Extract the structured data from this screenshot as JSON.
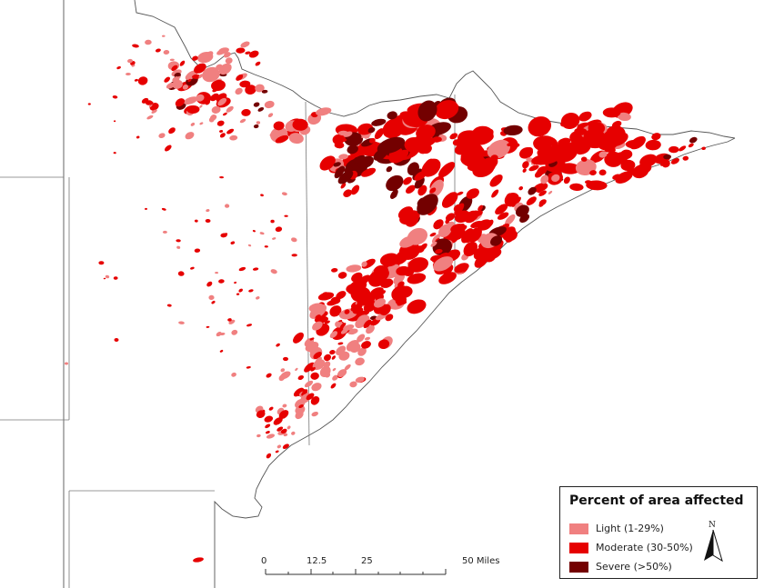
{
  "map": {
    "colors": {
      "light": "#f08080",
      "moderate": "#e60000",
      "severe": "#730000",
      "boundary": "#555555",
      "county_line": "#777777"
    }
  },
  "legend": {
    "title": "Percent of area affected",
    "items": [
      {
        "key": "light",
        "label": "Light (1-29%)",
        "color": "#f08080"
      },
      {
        "key": "moderate",
        "label": "Moderate (30-50%)",
        "color": "#e60000"
      },
      {
        "key": "severe",
        "label": "Severe (>50%)",
        "color": "#730000"
      }
    ]
  },
  "north_arrow": {
    "letter": "N",
    "icon": "north-arrow-icon"
  },
  "scale_bar": {
    "labels": [
      "0",
      "12.5",
      "25",
      "50 Miles"
    ]
  }
}
